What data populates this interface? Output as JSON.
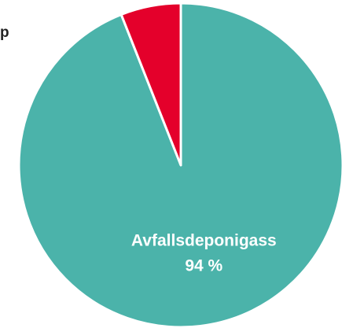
{
  "chart_data": {
    "type": "pie",
    "annotation": "p",
    "categories": [
      "Avfallsdeponigass",
      null
    ],
    "values": [
      94,
      6
    ],
    "value_labels": [
      "94 %",
      null
    ],
    "colors": [
      "#4bb3aa",
      "#e4002b"
    ]
  }
}
